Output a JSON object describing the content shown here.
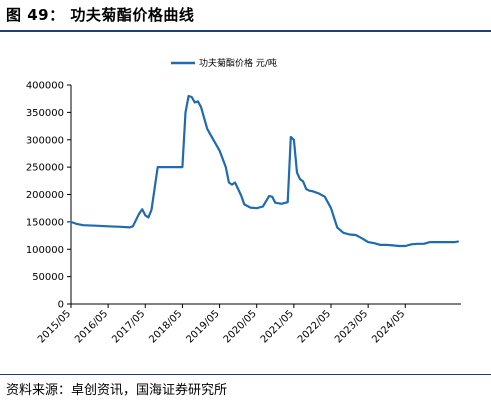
{
  "figure": {
    "title": "图 49： 功夫菊酯价格曲线",
    "source": "资料来源：卓创资讯，国海证券研究所"
  },
  "colors": {
    "line": "#1f6ab1",
    "axis": "#000000",
    "rule": "#1f3f7a"
  },
  "chart_data": {
    "type": "line",
    "legend_position": "top-center",
    "grid": false,
    "ylim": [
      0,
      400000
    ],
    "yticks": [
      0,
      50000,
      100000,
      150000,
      200000,
      250000,
      300000,
      350000,
      400000
    ],
    "ytick_labels": [
      "0",
      "50000",
      "100000",
      "150000",
      "200000",
      "250000",
      "300000",
      "350000",
      "400000"
    ],
    "xlim": [
      "2015-05",
      "2025-11"
    ],
    "xtick_labels": [
      "2015/05",
      "2016/05",
      "2017/05",
      "2018/05",
      "2019/05",
      "2020/05",
      "2021/05",
      "2022/05",
      "2023/05",
      "2024/05"
    ],
    "series": [
      {
        "name": "功夫菊酯价格  元/吨",
        "x": [
          "2015-05",
          "2015-07",
          "2015-09",
          "2016-01",
          "2016-05",
          "2016-09",
          "2016-12",
          "2017-01",
          "2017-03",
          "2017-04",
          "2017-05",
          "2017-06",
          "2017-07",
          "2017-09",
          "2017-10",
          "2017-11",
          "2017-12",
          "2018-02",
          "2018-05",
          "2018-06",
          "2018-07",
          "2018-08",
          "2018-09",
          "2018-10",
          "2018-11",
          "2019-01",
          "2019-03",
          "2019-05",
          "2019-07",
          "2019-08",
          "2019-09",
          "2019-10",
          "2019-11",
          "2019-12",
          "2020-01",
          "2020-03",
          "2020-05",
          "2020-07",
          "2020-09",
          "2020-10",
          "2020-11",
          "2021-01",
          "2021-03",
          "2021-04",
          "2021-05",
          "2021-06",
          "2021-07",
          "2021-08",
          "2021-09",
          "2021-10",
          "2021-11",
          "2022-01",
          "2022-03",
          "2022-05",
          "2022-07",
          "2022-09",
          "2022-11",
          "2023-01",
          "2023-02",
          "2023-03",
          "2023-05",
          "2023-07",
          "2023-09",
          "2023-11",
          "2024-01",
          "2024-03",
          "2024-05",
          "2024-07",
          "2024-09",
          "2024-11",
          "2025-01",
          "2025-03",
          "2025-05",
          "2025-07",
          "2025-09",
          "2025-10"
        ],
        "values": [
          150000,
          146000,
          144000,
          143000,
          142000,
          141000,
          140000,
          142000,
          165000,
          173000,
          162000,
          158000,
          172000,
          250000,
          250000,
          250000,
          250000,
          250000,
          250000,
          350000,
          380000,
          378000,
          368000,
          370000,
          360000,
          320000,
          300000,
          280000,
          250000,
          222000,
          218000,
          222000,
          210000,
          198000,
          182000,
          176000,
          175000,
          178000,
          197000,
          196000,
          185000,
          183000,
          186000,
          305000,
          300000,
          240000,
          228000,
          224000,
          210000,
          207000,
          206000,
          202000,
          196000,
          175000,
          140000,
          130000,
          127000,
          126000,
          123000,
          120000,
          113000,
          111000,
          108000,
          108000,
          107000,
          106000,
          106000,
          109000,
          110000,
          110000,
          113000,
          113000,
          113000,
          113000,
          113000,
          114000
        ]
      }
    ]
  }
}
